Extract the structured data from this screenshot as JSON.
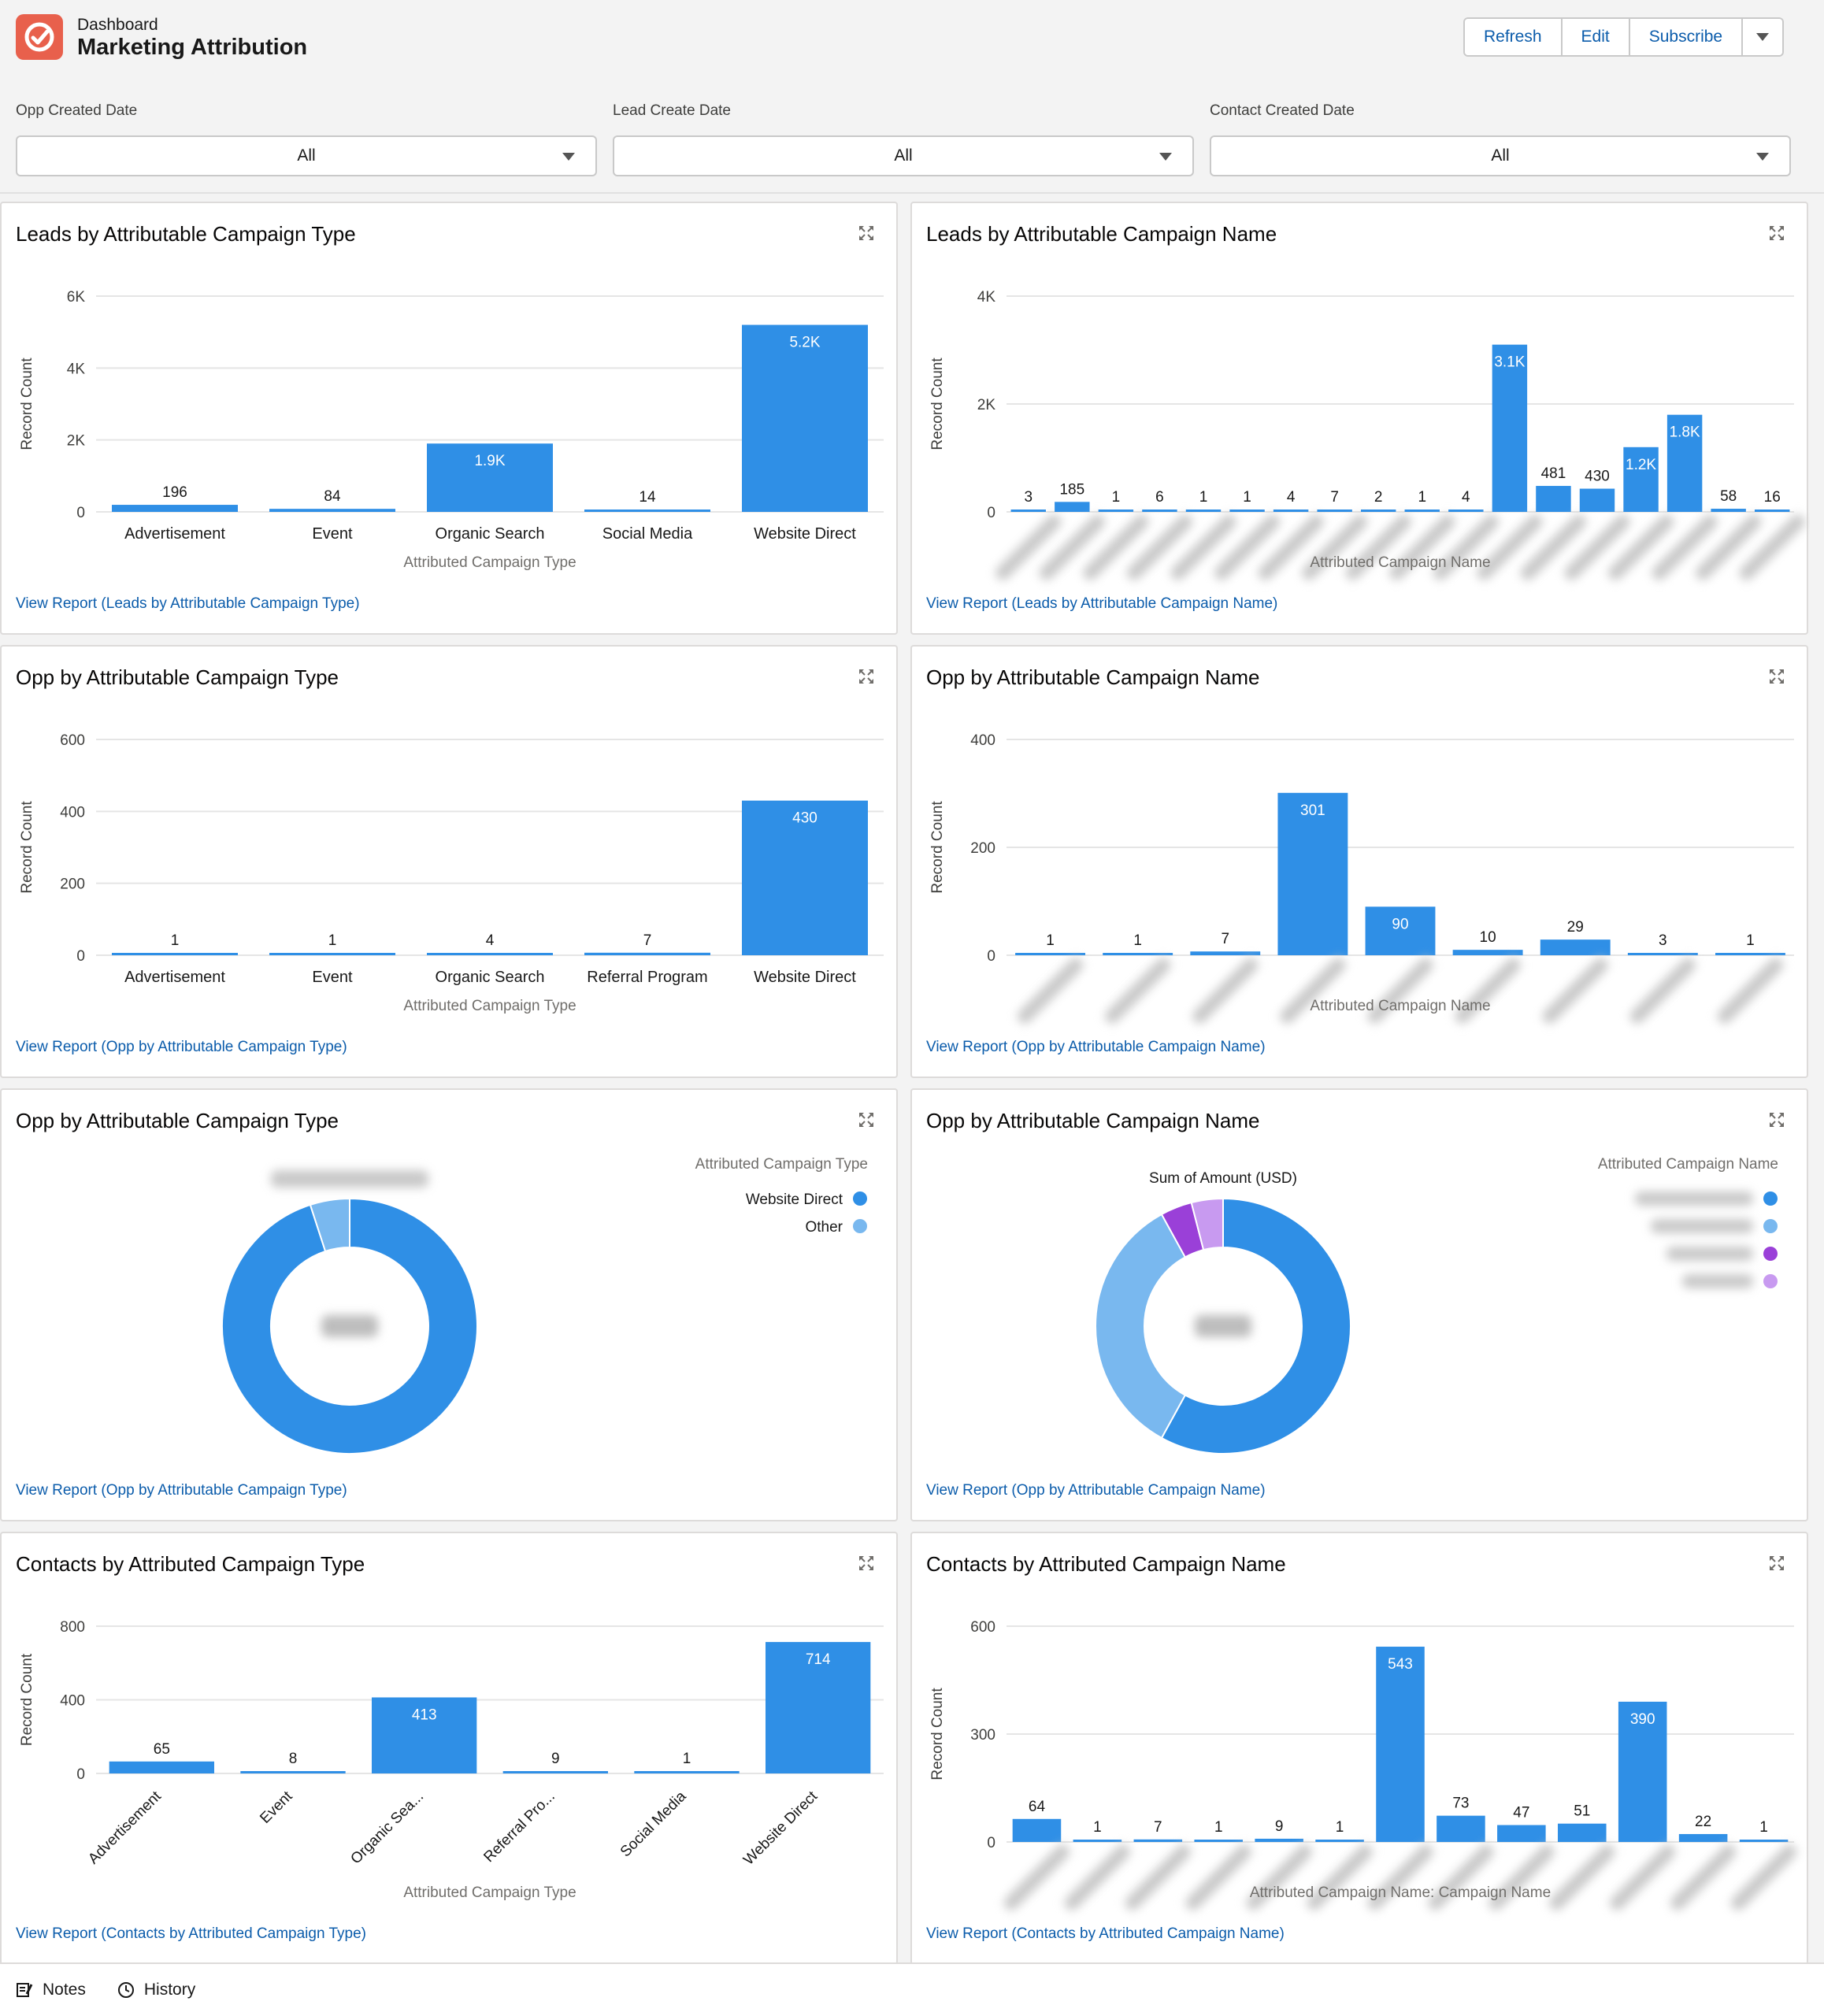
{
  "header": {
    "breadcrumb": "Dashboard",
    "title": "Marketing Attribution",
    "buttons": {
      "refresh": "Refresh",
      "edit": "Edit",
      "subscribe": "Subscribe"
    },
    "icon": "app-logo-icon",
    "accent": "#e8604c"
  },
  "filters": [
    {
      "label": "Opp Created Date",
      "value": "All"
    },
    {
      "label": "Lead Create Date",
      "value": "All"
    },
    {
      "label": "Contact Created Date",
      "value": "All"
    }
  ],
  "colors": {
    "bar": "#2f8fe6",
    "pie_light": "#79b8ef",
    "purple": "#9a40d8",
    "lavender": "#c89af0",
    "link": "#0b5cab"
  },
  "cards": [
    {
      "title": "Leads by Attributable Campaign Type",
      "link": "View Report (Leads by Attributable Campaign Type)"
    },
    {
      "title": "Leads by Attributable Campaign Name",
      "link": "View Report (Leads by Attributable Campaign Name)"
    },
    {
      "title": "Opp by Attributable Campaign Type",
      "link": "View Report (Opp by Attributable Campaign Type)"
    },
    {
      "title": "Opp by Attributable Campaign Name",
      "link": "View Report (Opp by Attributable Campaign Name)"
    },
    {
      "title": "Opp by Attributable Campaign Type",
      "link": "View Report (Opp by Attributable Campaign Type)"
    },
    {
      "title": "Opp by Attributable Campaign Name",
      "link": "View Report (Opp by Attributable Campaign Name)"
    },
    {
      "title": "Contacts by Attributed Campaign Type",
      "link": "View Report (Contacts by Attributed Campaign Type)"
    },
    {
      "title": "Contacts by Attributed Campaign Name",
      "link": "View Report (Contacts by Attributed Campaign Name)"
    }
  ],
  "chart_data": [
    {
      "type": "bar",
      "ylabel": "Record Count",
      "xlabel": "Attributed Campaign Type",
      "ylim": [
        0,
        6000
      ],
      "yticks": [
        "0",
        "2K",
        "4K",
        "6K"
      ],
      "categories": [
        "Advertisement",
        "Event",
        "Organic Search",
        "Social Media",
        "Website Direct"
      ],
      "values": [
        196,
        84,
        1900,
        14,
        5200
      ],
      "data_labels": [
        "196",
        "84",
        "1.9K",
        "14",
        "5.2K"
      ],
      "grid": true
    },
    {
      "type": "bar",
      "ylabel": "Record Count",
      "xlabel": "Attributed Campaign Name",
      "ylim": [
        0,
        4000
      ],
      "yticks": [
        "0",
        "2K",
        "4K"
      ],
      "categories_blurred": true,
      "values": [
        3,
        185,
        1,
        6,
        1,
        1,
        4,
        7,
        2,
        1,
        4,
        3100,
        481,
        430,
        1200,
        1800,
        58,
        16
      ],
      "data_labels": [
        "3",
        "185",
        "1",
        "6",
        "1",
        "1",
        "4",
        "7",
        "2",
        "1",
        "4",
        "3.1K",
        "481",
        "430",
        "1.2K",
        "1.8K",
        "58",
        "16"
      ],
      "grid": true
    },
    {
      "type": "bar",
      "ylabel": "Record Count",
      "xlabel": "Attributed Campaign Type",
      "ylim": [
        0,
        600
      ],
      "yticks": [
        "0",
        "200",
        "400",
        "600"
      ],
      "categories": [
        "Advertisement",
        "Event",
        "Organic Search",
        "Referral Program",
        "Website Direct"
      ],
      "values": [
        1,
        1,
        4,
        7,
        430
      ],
      "data_labels": [
        "1",
        "1",
        "4",
        "7",
        "430"
      ],
      "grid": true
    },
    {
      "type": "bar",
      "ylabel": "Record Count",
      "xlabel": "Attributed Campaign Name",
      "ylim": [
        0,
        400
      ],
      "yticks": [
        "0",
        "200",
        "400"
      ],
      "categories_blurred": true,
      "values": [
        1,
        1,
        7,
        301,
        90,
        10,
        29,
        3,
        1
      ],
      "data_labels": [
        "1",
        "1",
        "7",
        "301",
        "90",
        "10",
        "29",
        "3",
        "1"
      ],
      "grid": true
    },
    {
      "type": "pie",
      "legend_title": "Attributed Campaign Type",
      "legend_placement": "top-right",
      "slices": [
        {
          "name": "Website Direct",
          "value": 0.95,
          "color": "#2f8fe6"
        },
        {
          "name": "Other",
          "value": 0.05,
          "color": "#79b8ef"
        }
      ]
    },
    {
      "type": "pie",
      "title": "Sum of Amount (USD)",
      "legend_title": "Attributed Campaign Name",
      "legend_placement": "top-right",
      "slices": [
        {
          "value": 0.58,
          "color": "#2f8fe6"
        },
        {
          "value": 0.34,
          "color": "#79b8ef"
        },
        {
          "value": 0.04,
          "color": "#9a40d8"
        },
        {
          "value": 0.04,
          "color": "#c89af0"
        }
      ]
    },
    {
      "type": "bar",
      "ylabel": "Record Count",
      "xlabel": "Attributed Campaign Type",
      "ylim": [
        0,
        800
      ],
      "yticks": [
        "0",
        "400",
        "800"
      ],
      "categories": [
        "Advertisement",
        "Event",
        "Organic Sea...",
        "Referral Pro...",
        "Social Media",
        "Website Direct"
      ],
      "rotate_labels": true,
      "values": [
        65,
        8,
        413,
        9,
        1,
        714
      ],
      "data_labels": [
        "65",
        "8",
        "413",
        "9",
        "1",
        "714"
      ],
      "grid": true
    },
    {
      "type": "bar",
      "ylabel": "Record Count",
      "xlabel": "Attributed Campaign Name: Campaign Name",
      "ylim": [
        0,
        600
      ],
      "yticks": [
        "0",
        "300",
        "600"
      ],
      "categories_blurred": true,
      "values": [
        64,
        1,
        7,
        1,
        9,
        1,
        543,
        73,
        47,
        51,
        390,
        22,
        1
      ],
      "data_labels": [
        "64",
        "1",
        "7",
        "1",
        "9",
        "1",
        "543",
        "73",
        "47",
        "51",
        "390",
        "22",
        "1"
      ],
      "grid": true
    }
  ],
  "footer": {
    "notes": "Notes",
    "history": "History"
  }
}
